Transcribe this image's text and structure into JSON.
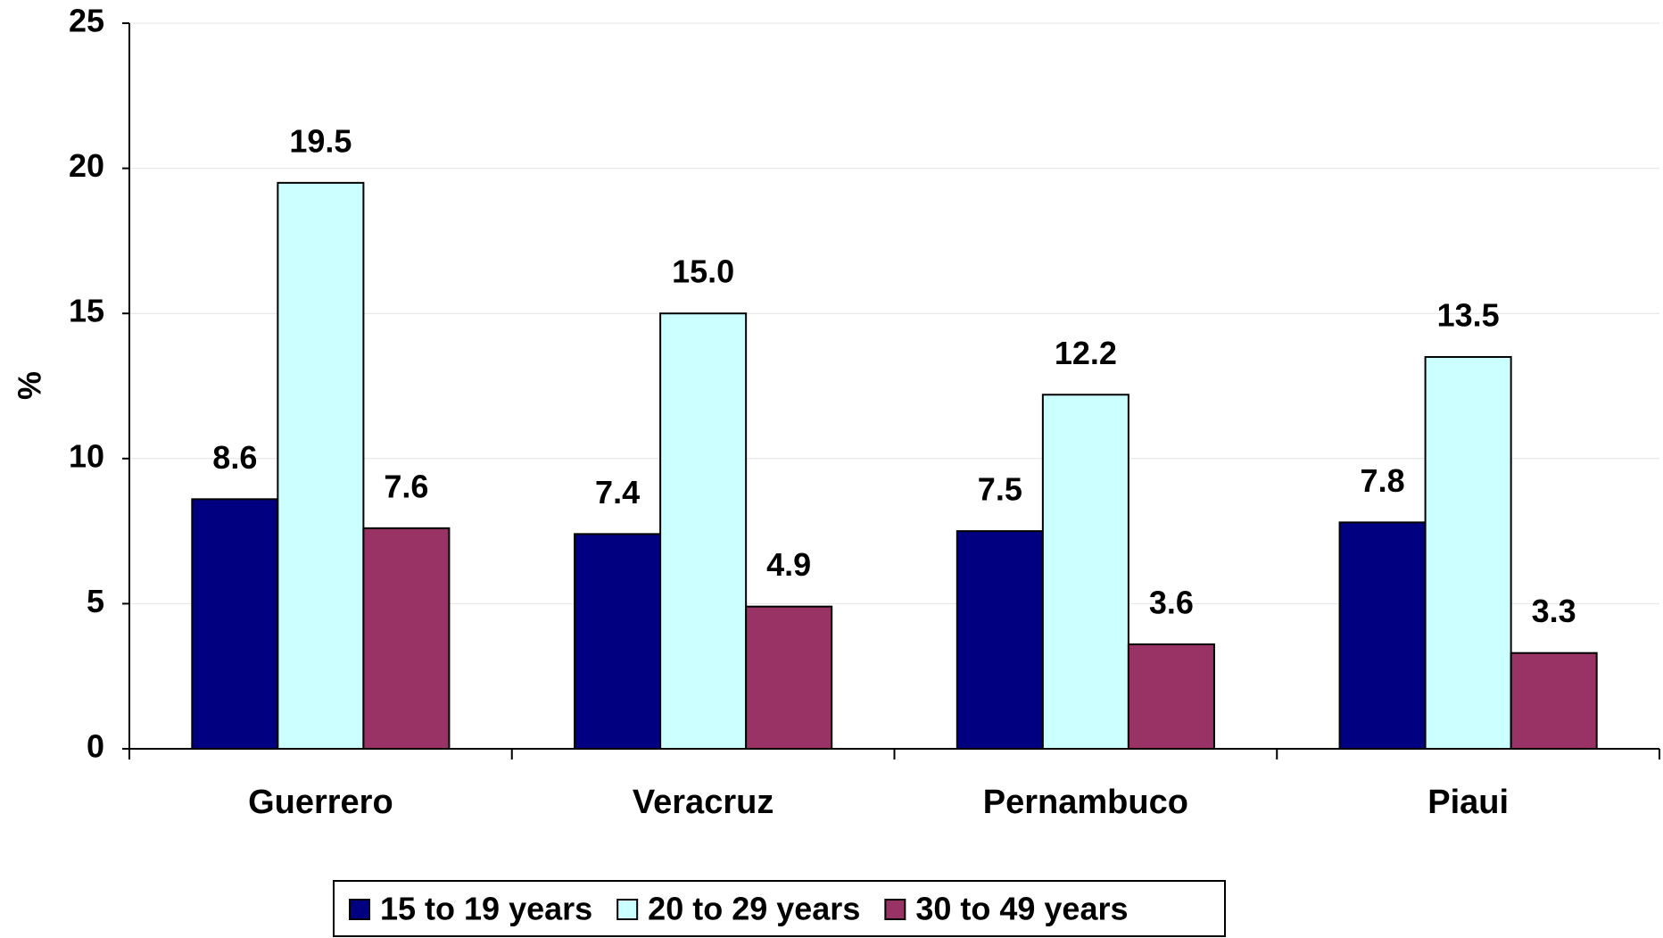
{
  "chart_data": {
    "type": "bar",
    "y_label": "%",
    "categories": [
      "Guerrero",
      "Veracruz",
      "Pernambuco",
      "Piaui"
    ],
    "series": [
      {
        "name": "15 to 19 years",
        "color": "#000080",
        "values": [
          8.6,
          7.4,
          7.5,
          7.8
        ],
        "value_labels": [
          "8.6",
          "7.4",
          "7.5",
          "7.8"
        ]
      },
      {
        "name": "20 to 29 years",
        "color": "#ccffff",
        "values": [
          19.5,
          15.0,
          12.2,
          13.5
        ],
        "value_labels": [
          "19.5",
          "15.0",
          "12.2",
          "13.5"
        ]
      },
      {
        "name": "30 to 49 years",
        "color": "#993366",
        "values": [
          7.6,
          4.9,
          3.6,
          3.3
        ],
        "value_labels": [
          "7.6",
          "4.9",
          "3.6",
          "3.3"
        ]
      }
    ],
    "ylim": [
      0,
      25
    ],
    "yticks": [
      0,
      5,
      10,
      15,
      20,
      25
    ],
    "grid": true,
    "legend": "bottom"
  }
}
